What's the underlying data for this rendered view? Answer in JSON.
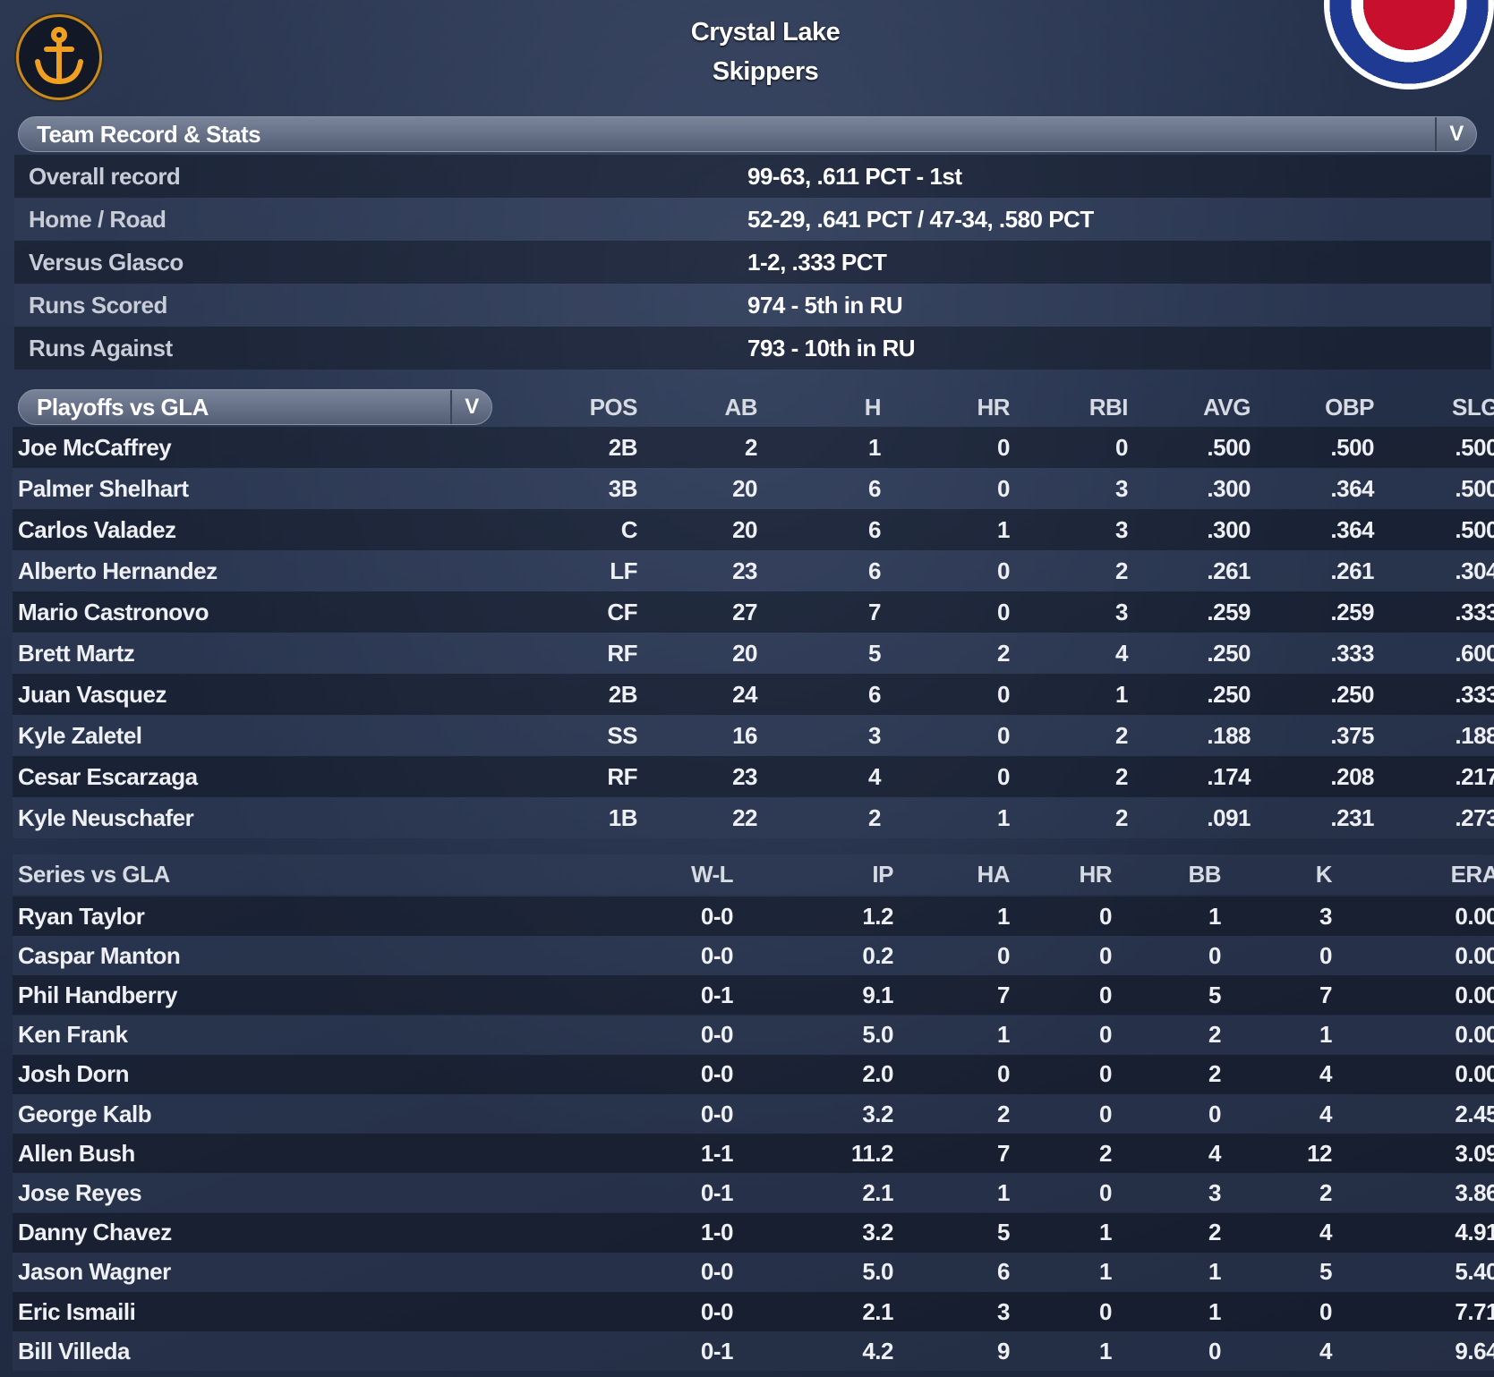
{
  "header": {
    "team_city": "Crystal Lake",
    "team_name": "Skippers",
    "logo_icon": "anchor-icon",
    "accent": "#c98a1a"
  },
  "record": {
    "dropdown_label": "Team Record & Stats",
    "rows": [
      {
        "label": "Overall record",
        "value": "99-63, .611 PCT - 1st"
      },
      {
        "label": "Home / Road",
        "value": "52-29, .641 PCT / 47-34, .580 PCT"
      },
      {
        "label": "Versus Glasco",
        "value": "1-2, .333 PCT"
      },
      {
        "label": "Runs Scored",
        "value": "974 - 5th in RU"
      },
      {
        "label": "Runs Against",
        "value": "793 - 10th in RU"
      }
    ]
  },
  "batting": {
    "dropdown_label": "Playoffs vs GLA",
    "columns": [
      "POS",
      "AB",
      "H",
      "HR",
      "RBI",
      "AVG",
      "OBP",
      "SLG"
    ],
    "rows": [
      [
        "Joe McCaffrey",
        "2B",
        "2",
        "1",
        "0",
        "0",
        ".500",
        ".500",
        ".500"
      ],
      [
        "Palmer Shelhart",
        "3B",
        "20",
        "6",
        "0",
        "3",
        ".300",
        ".364",
        ".500"
      ],
      [
        "Carlos Valadez",
        "C",
        "20",
        "6",
        "1",
        "3",
        ".300",
        ".364",
        ".500"
      ],
      [
        "Alberto Hernandez",
        "LF",
        "23",
        "6",
        "0",
        "2",
        ".261",
        ".261",
        ".304"
      ],
      [
        "Mario Castronovo",
        "CF",
        "27",
        "7",
        "0",
        "3",
        ".259",
        ".259",
        ".333"
      ],
      [
        "Brett Martz",
        "RF",
        "20",
        "5",
        "2",
        "4",
        ".250",
        ".333",
        ".600"
      ],
      [
        "Juan Vasquez",
        "2B",
        "24",
        "6",
        "0",
        "1",
        ".250",
        ".250",
        ".333"
      ],
      [
        "Kyle Zaletel",
        "SS",
        "16",
        "3",
        "0",
        "2",
        ".188",
        ".375",
        ".188"
      ],
      [
        "Cesar Escarzaga",
        "RF",
        "23",
        "4",
        "0",
        "2",
        ".174",
        ".208",
        ".217"
      ],
      [
        "Kyle Neuschafer",
        "1B",
        "22",
        "2",
        "1",
        "2",
        ".091",
        ".231",
        ".273"
      ]
    ]
  },
  "pitching": {
    "title": "Series vs GLA",
    "columns": [
      "W-L",
      "IP",
      "HA",
      "HR",
      "BB",
      "K",
      "ERA"
    ],
    "rows": [
      [
        "Ryan Taylor",
        "0-0",
        "1.2",
        "1",
        "0",
        "1",
        "3",
        "0.00"
      ],
      [
        "Caspar Manton",
        "0-0",
        "0.2",
        "0",
        "0",
        "0",
        "0",
        "0.00"
      ],
      [
        "Phil Handberry",
        "0-1",
        "9.1",
        "7",
        "0",
        "5",
        "7",
        "0.00"
      ],
      [
        "Ken Frank",
        "0-0",
        "5.0",
        "1",
        "0",
        "2",
        "1",
        "0.00"
      ],
      [
        "Josh Dorn",
        "0-0",
        "2.0",
        "0",
        "0",
        "2",
        "4",
        "0.00"
      ],
      [
        "George Kalb",
        "0-0",
        "3.2",
        "2",
        "0",
        "0",
        "4",
        "2.45"
      ],
      [
        "Allen Bush",
        "1-1",
        "11.2",
        "7",
        "2",
        "4",
        "12",
        "3.09"
      ],
      [
        "Jose Reyes",
        "0-1",
        "2.1",
        "1",
        "0",
        "3",
        "2",
        "3.86"
      ],
      [
        "Danny Chavez",
        "1-0",
        "3.2",
        "5",
        "1",
        "2",
        "4",
        "4.91"
      ],
      [
        "Jason Wagner",
        "0-0",
        "5.0",
        "6",
        "1",
        "1",
        "5",
        "5.40"
      ],
      [
        "Eric Ismaili",
        "0-0",
        "2.1",
        "3",
        "0",
        "1",
        "0",
        "7.71"
      ],
      [
        "Bill Villeda",
        "0-1",
        "4.2",
        "9",
        "1",
        "0",
        "4",
        "9.64"
      ]
    ]
  }
}
